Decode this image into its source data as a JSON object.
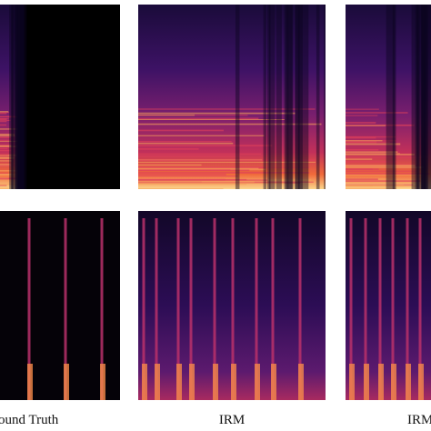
{
  "labels": [
    "ound Truth",
    "IRM",
    "IRM"
  ]
}
